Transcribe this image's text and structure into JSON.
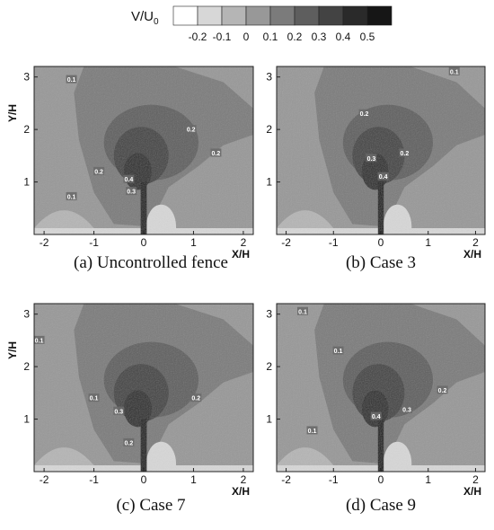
{
  "colorbar": {
    "title_main": "V/U",
    "title_sub": "0",
    "levels": [
      "-0.2",
      "-0.1",
      "0",
      "0.1",
      "0.2",
      "0.3",
      "0.4",
      "0.5"
    ],
    "colors": [
      "#ffffff",
      "#d7d7d7",
      "#b5b5b5",
      "#989898",
      "#7b7b7b",
      "#5e5e5e",
      "#434343",
      "#2a2a2a",
      "#161616"
    ]
  },
  "axes": {
    "xlabel": "X/H",
    "ylabel": "Y/H",
    "x_ticks": [
      "-2",
      "-1",
      "0",
      "1",
      "2"
    ],
    "y_ticks": [
      "1",
      "2",
      "3"
    ],
    "xlim": [
      -2.2,
      2.2
    ],
    "ylim": [
      0,
      3.2
    ]
  },
  "panels": [
    {
      "caption": "(a)  Uncontrolled  fence",
      "contour_labels": [
        {
          "x": -1.45,
          "y": 2.95,
          "text": "0.1"
        },
        {
          "x": -1.45,
          "y": 0.72,
          "text": "0.1"
        },
        {
          "x": -0.9,
          "y": 1.2,
          "text": "0.2"
        },
        {
          "x": 0.95,
          "y": 2.0,
          "text": "0.2"
        },
        {
          "x": 1.45,
          "y": 1.55,
          "text": "0.2"
        },
        {
          "x": -0.3,
          "y": 1.05,
          "text": "0.4"
        },
        {
          "x": -0.25,
          "y": 0.82,
          "text": "0.3"
        }
      ]
    },
    {
      "caption": "(b)  Case  3",
      "contour_labels": [
        {
          "x": 1.55,
          "y": 3.1,
          "text": "0.1"
        },
        {
          "x": -0.35,
          "y": 2.3,
          "text": "0.2"
        },
        {
          "x": -0.2,
          "y": 1.45,
          "text": "0.3"
        },
        {
          "x": 0.5,
          "y": 1.55,
          "text": "0.2"
        },
        {
          "x": 0.05,
          "y": 1.1,
          "text": "0.4"
        }
      ]
    },
    {
      "caption": "(c)  Case  7",
      "contour_labels": [
        {
          "x": -2.1,
          "y": 2.5,
          "text": "0.1"
        },
        {
          "x": -1.0,
          "y": 1.4,
          "text": "0.1"
        },
        {
          "x": -0.5,
          "y": 1.15,
          "text": "0.3"
        },
        {
          "x": 1.05,
          "y": 1.4,
          "text": "0.2"
        },
        {
          "x": -0.3,
          "y": 0.55,
          "text": "0.2"
        }
      ]
    },
    {
      "caption": "(d)  Case  9",
      "contour_labels": [
        {
          "x": -1.65,
          "y": 3.05,
          "text": "0.1"
        },
        {
          "x": -0.9,
          "y": 2.3,
          "text": "0.1"
        },
        {
          "x": 1.3,
          "y": 1.55,
          "text": "0.2"
        },
        {
          "x": 0.55,
          "y": 1.18,
          "text": "0.3"
        },
        {
          "x": -0.1,
          "y": 1.05,
          "text": "0.4"
        },
        {
          "x": -1.45,
          "y": 0.78,
          "text": "0.1"
        }
      ]
    }
  ]
}
